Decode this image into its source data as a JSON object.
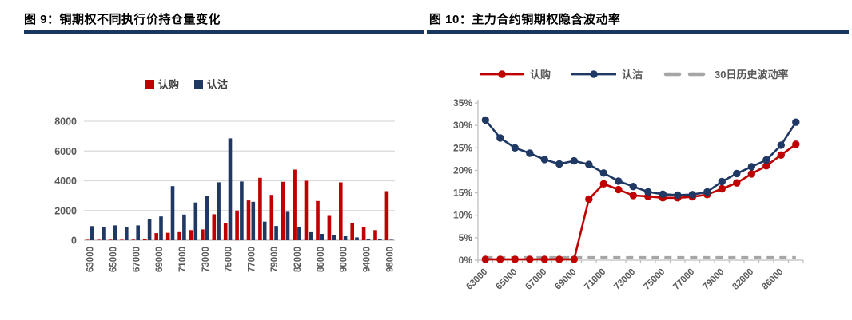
{
  "page": {
    "background": "#ffffff",
    "accent_rule_color": "#17375E"
  },
  "figures": [
    {
      "title": "图 9：铜期权不同执行价持仓量变化"
    },
    {
      "title": "图 10：主力合约铜期权隐含波动率"
    }
  ],
  "chart_data": [
    {
      "type": "bar",
      "title": "图 9：铜期权不同执行价持仓量变化",
      "legend_position": "top",
      "grid": true,
      "ylim": [
        0,
        8000
      ],
      "ytick_labels": [
        "0",
        "2000",
        "4000",
        "6000",
        "8000"
      ],
      "ytick_values": [
        0,
        2000,
        4000,
        6000,
        8000
      ],
      "categories": [
        63000,
        64000,
        65000,
        66000,
        67000,
        68000,
        69000,
        70000,
        71000,
        72000,
        73000,
        74000,
        75000,
        76000,
        77000,
        78000,
        79000,
        80000,
        82000,
        84000,
        86000,
        88000,
        90000,
        92000,
        94000,
        96000,
        98000
      ],
      "xtick_labels": [
        "63000",
        "65000",
        "67000",
        "69000",
        "71000",
        "73000",
        "75000",
        "77000",
        "79000",
        "82000",
        "86000",
        "90000",
        "94000",
        "98000"
      ],
      "xtick_every": 2,
      "series": [
        {
          "name": "认购",
          "color": "#C00000",
          "values": [
            30,
            30,
            40,
            30,
            40,
            60,
            480,
            500,
            550,
            680,
            730,
            1750,
            1180,
            2000,
            2680,
            4200,
            3050,
            3930,
            4750,
            4000,
            2640,
            1640,
            3890,
            1140,
            860,
            680,
            3300
          ]
        },
        {
          "name": "认沽",
          "color": "#1F3864",
          "values": [
            950,
            900,
            1000,
            880,
            1000,
            1450,
            1600,
            3640,
            1730,
            2540,
            3000,
            3900,
            6850,
            3950,
            2590,
            1250,
            960,
            1910,
            910,
            540,
            430,
            360,
            270,
            195,
            110,
            60,
            30
          ]
        }
      ]
    },
    {
      "type": "line",
      "title": "图 10：主力合约铜期权隐含波动率",
      "legend_position": "top",
      "grid": false,
      "ylim": [
        0,
        35
      ],
      "yformat": "percent",
      "ytick_labels": [
        "0%",
        "5%",
        "10%",
        "15%",
        "20%",
        "25%",
        "30%",
        "35%"
      ],
      "ytick_values": [
        0,
        5,
        10,
        15,
        20,
        25,
        30,
        35
      ],
      "categories": [
        63000,
        64000,
        65000,
        66000,
        67000,
        68000,
        69000,
        70000,
        71000,
        72000,
        73000,
        74000,
        75000,
        76000,
        77000,
        78000,
        79000,
        80000,
        82000,
        84000,
        86000,
        88000
      ],
      "xtick_labels": [
        "63000",
        "65000",
        "67000",
        "69000",
        "71000",
        "73000",
        "75000",
        "77000",
        "79000",
        "82000",
        "86000"
      ],
      "xtick_every": 2,
      "series": [
        {
          "name": "认购",
          "color": "#C00000",
          "marker": "circle",
          "dash": false,
          "values": [
            0.2,
            0.2,
            0.2,
            0.2,
            0.2,
            0.2,
            0.2,
            13.6,
            17.0,
            15.7,
            14.4,
            14.2,
            13.9,
            13.9,
            14.1,
            14.6,
            15.9,
            17.2,
            19.2,
            21.0,
            23.4,
            25.8
          ]
        },
        {
          "name": "认沽",
          "color": "#1F3864",
          "marker": "circle",
          "dash": false,
          "values": [
            31.2,
            27.2,
            25.0,
            23.8,
            22.4,
            21.4,
            22.1,
            21.3,
            19.4,
            17.6,
            16.4,
            15.2,
            14.7,
            14.5,
            14.6,
            15.2,
            17.5,
            19.3,
            20.8,
            22.3,
            25.6,
            30.7
          ]
        },
        {
          "name": "30日历史波动率",
          "color": "#A6A6A6",
          "marker": "none",
          "dash": true,
          "values": [
            0.6,
            0.6,
            0.6,
            0.6,
            0.6,
            0.6,
            0.6,
            0.6,
            0.6,
            0.6,
            0.6,
            0.6,
            0.6,
            0.6,
            0.6,
            0.6,
            0.6,
            0.6,
            0.6,
            0.6,
            0.6,
            0.6
          ]
        }
      ]
    }
  ]
}
